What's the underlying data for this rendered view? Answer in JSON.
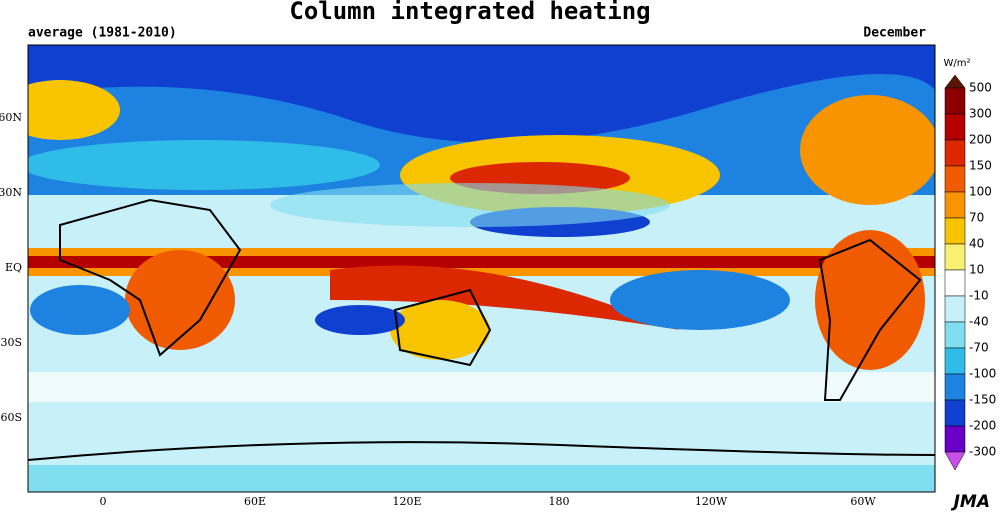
{
  "title": "Column integrated heating",
  "subtitle": "average (1981-2010)",
  "month": "December",
  "lat_labels": [
    "60N",
    "30N",
    "EQ",
    "30S",
    "60S"
  ],
  "lon_labels": [
    "0",
    "60E",
    "120E",
    "180",
    "120W",
    "60W"
  ],
  "colorbar": {
    "unit": "W/m²",
    "levels": [
      500,
      300,
      200,
      150,
      100,
      70,
      40,
      10,
      -10,
      -40,
      -70,
      -100,
      -150,
      -200,
      -300
    ],
    "colors": [
      "#5a1400",
      "#8c0000",
      "#b40000",
      "#dc2800",
      "#f05a00",
      "#f89400",
      "#f8c400",
      "#f8f070",
      "#ffffff",
      "#c8f0f8",
      "#80def0",
      "#30bce8",
      "#1e82e0",
      "#1040d0",
      "#6a00c8",
      "#c850e8"
    ]
  },
  "credit": "JMA"
}
